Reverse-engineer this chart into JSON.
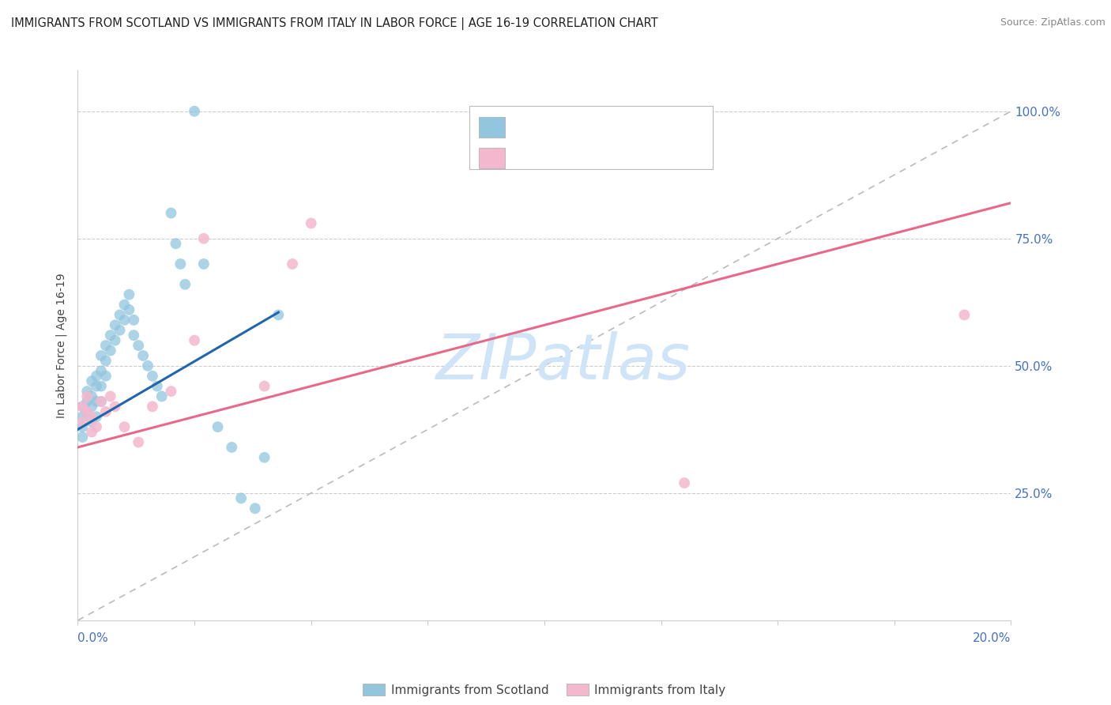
{
  "title": "IMMIGRANTS FROM SCOTLAND VS IMMIGRANTS FROM ITALY IN LABOR FORCE | AGE 16-19 CORRELATION CHART",
  "source": "Source: ZipAtlas.com",
  "ylabel": "In Labor Force | Age 16-19",
  "ytick_labels": [
    "100.0%",
    "75.0%",
    "50.0%",
    "25.0%"
  ],
  "ytick_values": [
    1.0,
    0.75,
    0.5,
    0.25
  ],
  "xmin": 0.0,
  "xmax": 0.2,
  "ymin": 0.0,
  "ymax": 1.08,
  "scotland_color": "#92c5de",
  "italy_color": "#f4b8ce",
  "scotland_line_color": "#2166ac",
  "italy_line_color": "#e8688a",
  "ref_line_color": "#bbbbbb",
  "watermark": "ZIPatlas",
  "watermark_color": "#d0e4f7",
  "grid_color": "#cccccc",
  "background_color": "#ffffff",
  "legend_text_color": "#4472c4",
  "legend_label_color": "#222222",
  "scotland_trend_x0": 0.0,
  "scotland_trend_x1": 0.043,
  "scotland_trend_y0": 0.375,
  "scotland_trend_y1": 0.605,
  "italy_trend_x0": 0.0,
  "italy_trend_x1": 0.2,
  "italy_trend_y0": 0.34,
  "italy_trend_y1": 0.82,
  "scot_x": [
    0.001,
    0.001,
    0.001,
    0.001,
    0.002,
    0.002,
    0.002,
    0.003,
    0.003,
    0.003,
    0.003,
    0.004,
    0.004,
    0.004,
    0.004,
    0.005,
    0.005,
    0.005,
    0.005,
    0.006,
    0.006,
    0.006,
    0.007,
    0.007,
    0.008,
    0.008,
    0.009,
    0.009,
    0.01,
    0.01,
    0.011,
    0.011,
    0.012,
    0.012,
    0.013,
    0.014,
    0.015,
    0.016,
    0.017,
    0.018,
    0.02,
    0.021,
    0.022,
    0.023,
    0.025,
    0.027,
    0.03,
    0.033,
    0.035,
    0.038,
    0.04,
    0.043
  ],
  "scot_y": [
    0.42,
    0.4,
    0.38,
    0.36,
    0.45,
    0.43,
    0.41,
    0.47,
    0.44,
    0.42,
    0.39,
    0.48,
    0.46,
    0.43,
    0.4,
    0.52,
    0.49,
    0.46,
    0.43,
    0.54,
    0.51,
    0.48,
    0.56,
    0.53,
    0.58,
    0.55,
    0.6,
    0.57,
    0.62,
    0.59,
    0.64,
    0.61,
    0.59,
    0.56,
    0.54,
    0.52,
    0.5,
    0.48,
    0.46,
    0.44,
    0.8,
    0.74,
    0.7,
    0.66,
    1.0,
    0.7,
    0.38,
    0.34,
    0.24,
    0.22,
    0.32,
    0.6
  ],
  "ital_x": [
    0.001,
    0.001,
    0.002,
    0.002,
    0.003,
    0.003,
    0.004,
    0.005,
    0.006,
    0.007,
    0.008,
    0.01,
    0.013,
    0.016,
    0.02,
    0.025,
    0.027,
    0.04,
    0.046,
    0.05,
    0.13,
    0.19
  ],
  "ital_y": [
    0.42,
    0.39,
    0.44,
    0.41,
    0.4,
    0.37,
    0.38,
    0.43,
    0.41,
    0.44,
    0.42,
    0.38,
    0.35,
    0.42,
    0.45,
    0.55,
    0.75,
    0.46,
    0.7,
    0.78,
    0.27,
    0.6
  ]
}
